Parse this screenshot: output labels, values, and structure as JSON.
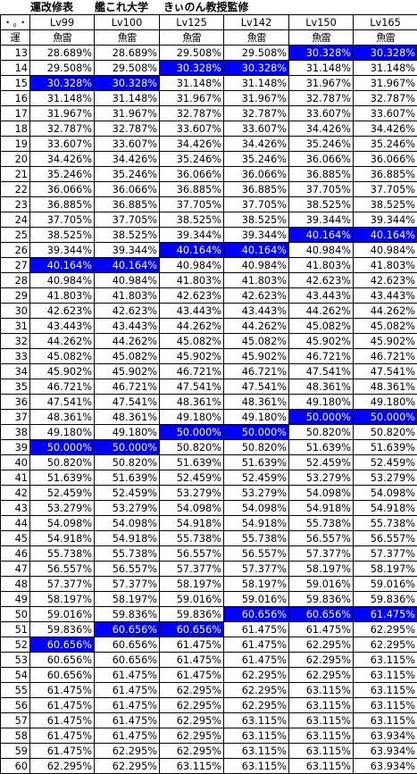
{
  "title": {
    "part1": "運改修表",
    "part2": "艦これ大学",
    "part3": "きぃのん教授監修"
  },
  "corner_labels": {
    "dots": "・。・",
    "level_label": "運"
  },
  "columns": [
    {
      "level": "Lv99",
      "type": "魚雷"
    },
    {
      "level": "Lv100",
      "type": "魚雷"
    },
    {
      "level": "Lv125",
      "type": "魚雷"
    },
    {
      "level": "Lv142",
      "type": "魚雷"
    },
    {
      "level": "Lv150",
      "type": "魚雷"
    },
    {
      "level": "Lv165",
      "type": "魚雷"
    }
  ],
  "rows": [
    {
      "luck": "13",
      "values": [
        "28.689%",
        "28.689%",
        "29.508%",
        "29.508%",
        "30.328%",
        "30.328%"
      ],
      "highlight": [
        false,
        false,
        false,
        false,
        true,
        true
      ]
    },
    {
      "luck": "14",
      "values": [
        "29.508%",
        "29.508%",
        "30.328%",
        "30.328%",
        "31.148%",
        "31.148%"
      ],
      "highlight": [
        false,
        false,
        true,
        true,
        false,
        false
      ]
    },
    {
      "luck": "15",
      "values": [
        "30.328%",
        "30.328%",
        "31.148%",
        "31.148%",
        "31.967%",
        "31.967%"
      ],
      "highlight": [
        true,
        true,
        false,
        false,
        false,
        false
      ]
    },
    {
      "luck": "16",
      "values": [
        "31.148%",
        "31.148%",
        "31.967%",
        "31.967%",
        "32.787%",
        "32.787%"
      ],
      "highlight": [
        false,
        false,
        false,
        false,
        false,
        false
      ]
    },
    {
      "luck": "17",
      "values": [
        "31.967%",
        "31.967%",
        "32.787%",
        "32.787%",
        "33.607%",
        "33.607%"
      ],
      "highlight": [
        false,
        false,
        false,
        false,
        false,
        false
      ]
    },
    {
      "luck": "18",
      "values": [
        "32.787%",
        "32.787%",
        "33.607%",
        "33.607%",
        "34.426%",
        "34.426%"
      ],
      "highlight": [
        false,
        false,
        false,
        false,
        false,
        false
      ]
    },
    {
      "luck": "19",
      "values": [
        "33.607%",
        "33.607%",
        "34.426%",
        "34.426%",
        "35.246%",
        "35.246%"
      ],
      "highlight": [
        false,
        false,
        false,
        false,
        false,
        false
      ]
    },
    {
      "luck": "20",
      "values": [
        "34.426%",
        "34.426%",
        "35.246%",
        "35.246%",
        "36.066%",
        "36.066%"
      ],
      "highlight": [
        false,
        false,
        false,
        false,
        false,
        false
      ]
    },
    {
      "luck": "21",
      "values": [
        "35.246%",
        "35.246%",
        "36.066%",
        "36.066%",
        "36.885%",
        "36.885%"
      ],
      "highlight": [
        false,
        false,
        false,
        false,
        false,
        false
      ]
    },
    {
      "luck": "22",
      "values": [
        "36.066%",
        "36.066%",
        "36.885%",
        "36.885%",
        "37.705%",
        "37.705%"
      ],
      "highlight": [
        false,
        false,
        false,
        false,
        false,
        false
      ]
    },
    {
      "luck": "23",
      "values": [
        "36.885%",
        "36.885%",
        "37.705%",
        "37.705%",
        "38.525%",
        "38.525%"
      ],
      "highlight": [
        false,
        false,
        false,
        false,
        false,
        false
      ]
    },
    {
      "luck": "24",
      "values": [
        "37.705%",
        "37.705%",
        "38.525%",
        "38.525%",
        "39.344%",
        "39.344%"
      ],
      "highlight": [
        false,
        false,
        false,
        false,
        false,
        false
      ]
    },
    {
      "luck": "25",
      "values": [
        "38.525%",
        "38.525%",
        "39.344%",
        "39.344%",
        "40.164%",
        "40.164%"
      ],
      "highlight": [
        false,
        false,
        false,
        false,
        true,
        true
      ]
    },
    {
      "luck": "26",
      "values": [
        "39.344%",
        "39.344%",
        "40.164%",
        "40.164%",
        "40.984%",
        "40.984%"
      ],
      "highlight": [
        false,
        false,
        true,
        true,
        false,
        false
      ]
    },
    {
      "luck": "27",
      "values": [
        "40.164%",
        "40.164%",
        "40.984%",
        "40.984%",
        "41.803%",
        "41.803%"
      ],
      "highlight": [
        true,
        true,
        false,
        false,
        false,
        false
      ]
    },
    {
      "luck": "28",
      "values": [
        "40.984%",
        "40.984%",
        "41.803%",
        "41.803%",
        "42.623%",
        "42.623%"
      ],
      "highlight": [
        false,
        false,
        false,
        false,
        false,
        false
      ]
    },
    {
      "luck": "29",
      "values": [
        "41.803%",
        "41.803%",
        "42.623%",
        "42.623%",
        "43.443%",
        "43.443%"
      ],
      "highlight": [
        false,
        false,
        false,
        false,
        false,
        false
      ]
    },
    {
      "luck": "30",
      "values": [
        "42.623%",
        "42.623%",
        "43.443%",
        "43.443%",
        "44.262%",
        "44.262%"
      ],
      "highlight": [
        false,
        false,
        false,
        false,
        false,
        false
      ]
    },
    {
      "luck": "31",
      "values": [
        "43.443%",
        "43.443%",
        "44.262%",
        "44.262%",
        "45.082%",
        "45.082%"
      ],
      "highlight": [
        false,
        false,
        false,
        false,
        false,
        false
      ]
    },
    {
      "luck": "32",
      "values": [
        "44.262%",
        "44.262%",
        "45.082%",
        "45.082%",
        "45.902%",
        "45.902%"
      ],
      "highlight": [
        false,
        false,
        false,
        false,
        false,
        false
      ]
    },
    {
      "luck": "33",
      "values": [
        "45.082%",
        "45.082%",
        "45.902%",
        "45.902%",
        "46.721%",
        "46.721%"
      ],
      "highlight": [
        false,
        false,
        false,
        false,
        false,
        false
      ]
    },
    {
      "luck": "34",
      "values": [
        "45.902%",
        "45.902%",
        "46.721%",
        "46.721%",
        "47.541%",
        "47.541%"
      ],
      "highlight": [
        false,
        false,
        false,
        false,
        false,
        false
      ]
    },
    {
      "luck": "35",
      "values": [
        "46.721%",
        "46.721%",
        "47.541%",
        "47.541%",
        "48.361%",
        "48.361%"
      ],
      "highlight": [
        false,
        false,
        false,
        false,
        false,
        false
      ]
    },
    {
      "luck": "36",
      "values": [
        "47.541%",
        "47.541%",
        "48.361%",
        "48.361%",
        "49.180%",
        "49.180%"
      ],
      "highlight": [
        false,
        false,
        false,
        false,
        false,
        false
      ]
    },
    {
      "luck": "37",
      "values": [
        "48.361%",
        "48.361%",
        "49.180%",
        "49.180%",
        "50.000%",
        "50.000%"
      ],
      "highlight": [
        false,
        false,
        false,
        false,
        true,
        true
      ]
    },
    {
      "luck": "38",
      "values": [
        "49.180%",
        "49.180%",
        "50.000%",
        "50.000%",
        "50.820%",
        "50.820%"
      ],
      "highlight": [
        false,
        false,
        true,
        true,
        false,
        false
      ]
    },
    {
      "luck": "39",
      "values": [
        "50.000%",
        "50.000%",
        "50.820%",
        "50.820%",
        "51.639%",
        "51.639%"
      ],
      "highlight": [
        true,
        true,
        false,
        false,
        false,
        false
      ]
    },
    {
      "luck": "40",
      "values": [
        "50.820%",
        "50.820%",
        "51.639%",
        "51.639%",
        "52.459%",
        "52.459%"
      ],
      "highlight": [
        false,
        false,
        false,
        false,
        false,
        false
      ]
    },
    {
      "luck": "41",
      "values": [
        "51.639%",
        "51.639%",
        "52.459%",
        "52.459%",
        "53.279%",
        "53.279%"
      ],
      "highlight": [
        false,
        false,
        false,
        false,
        false,
        false
      ]
    },
    {
      "luck": "42",
      "values": [
        "52.459%",
        "52.459%",
        "53.279%",
        "53.279%",
        "54.098%",
        "54.098%"
      ],
      "highlight": [
        false,
        false,
        false,
        false,
        false,
        false
      ]
    },
    {
      "luck": "43",
      "values": [
        "53.279%",
        "53.279%",
        "54.098%",
        "54.098%",
        "54.918%",
        "54.918%"
      ],
      "highlight": [
        false,
        false,
        false,
        false,
        false,
        false
      ]
    },
    {
      "luck": "44",
      "values": [
        "54.098%",
        "54.098%",
        "54.918%",
        "54.918%",
        "55.738%",
        "55.738%"
      ],
      "highlight": [
        false,
        false,
        false,
        false,
        false,
        false
      ]
    },
    {
      "luck": "45",
      "values": [
        "54.918%",
        "54.918%",
        "55.738%",
        "55.738%",
        "56.557%",
        "56.557%"
      ],
      "highlight": [
        false,
        false,
        false,
        false,
        false,
        false
      ]
    },
    {
      "luck": "46",
      "values": [
        "55.738%",
        "55.738%",
        "56.557%",
        "56.557%",
        "57.377%",
        "57.377%"
      ],
      "highlight": [
        false,
        false,
        false,
        false,
        false,
        false
      ]
    },
    {
      "luck": "47",
      "values": [
        "56.557%",
        "56.557%",
        "57.377%",
        "57.377%",
        "58.197%",
        "58.197%"
      ],
      "highlight": [
        false,
        false,
        false,
        false,
        false,
        false
      ]
    },
    {
      "luck": "48",
      "values": [
        "57.377%",
        "57.377%",
        "58.197%",
        "58.197%",
        "59.016%",
        "59.016%"
      ],
      "highlight": [
        false,
        false,
        false,
        false,
        false,
        false
      ]
    },
    {
      "luck": "49",
      "values": [
        "58.197%",
        "58.197%",
        "59.016%",
        "59.016%",
        "59.836%",
        "59.836%"
      ],
      "highlight": [
        false,
        false,
        false,
        false,
        false,
        false
      ]
    },
    {
      "luck": "50",
      "values": [
        "59.016%",
        "59.836%",
        "59.836%",
        "60.656%",
        "60.656%",
        "61.475%"
      ],
      "highlight": [
        false,
        false,
        false,
        true,
        true,
        true
      ]
    },
    {
      "luck": "51",
      "values": [
        "59.836%",
        "60.656%",
        "60.656%",
        "61.475%",
        "61.475%",
        "62.295%"
      ],
      "highlight": [
        false,
        true,
        true,
        false,
        false,
        false
      ]
    },
    {
      "luck": "52",
      "values": [
        "60.656%",
        "60.656%",
        "61.475%",
        "61.475%",
        "62.295%",
        "62.295%"
      ],
      "highlight": [
        true,
        false,
        false,
        false,
        false,
        false
      ]
    },
    {
      "luck": "53",
      "values": [
        "60.656%",
        "60.656%",
        "61.475%",
        "61.475%",
        "62.295%",
        "63.115%"
      ],
      "highlight": [
        false,
        false,
        false,
        false,
        false,
        false
      ]
    },
    {
      "luck": "54",
      "values": [
        "60.656%",
        "61.475%",
        "61.475%",
        "62.295%",
        "62.295%",
        "63.115%"
      ],
      "highlight": [
        false,
        false,
        false,
        false,
        false,
        false
      ]
    },
    {
      "luck": "55",
      "values": [
        "61.475%",
        "61.475%",
        "62.295%",
        "62.295%",
        "63.115%",
        "63.115%"
      ],
      "highlight": [
        false,
        false,
        false,
        false,
        false,
        false
      ]
    },
    {
      "luck": "56",
      "values": [
        "61.475%",
        "61.475%",
        "62.295%",
        "62.295%",
        "63.115%",
        "63.115%"
      ],
      "highlight": [
        false,
        false,
        false,
        false,
        false,
        false
      ]
    },
    {
      "luck": "57",
      "values": [
        "61.475%",
        "61.475%",
        "62.295%",
        "63.115%",
        "63.115%",
        "63.115%"
      ],
      "highlight": [
        false,
        false,
        false,
        false,
        false,
        false
      ]
    },
    {
      "luck": "58",
      "values": [
        "61.475%",
        "61.475%",
        "62.295%",
        "63.115%",
        "63.115%",
        "63.934%"
      ],
      "highlight": [
        false,
        false,
        false,
        false,
        false,
        false
      ]
    },
    {
      "luck": "59",
      "values": [
        "61.475%",
        "62.295%",
        "62.295%",
        "63.115%",
        "63.115%",
        "63.934%"
      ],
      "highlight": [
        false,
        false,
        false,
        false,
        false,
        false
      ]
    },
    {
      "luck": "60",
      "values": [
        "62.295%",
        "62.295%",
        "63.115%",
        "63.115%",
        "63.115%",
        "63.934%"
      ],
      "highlight": [
        false,
        false,
        false,
        false,
        false,
        false
      ]
    }
  ],
  "colors": {
    "highlight_bg": "#0000ff",
    "highlight_text": "#ffffff",
    "grid_line": "#000000"
  }
}
